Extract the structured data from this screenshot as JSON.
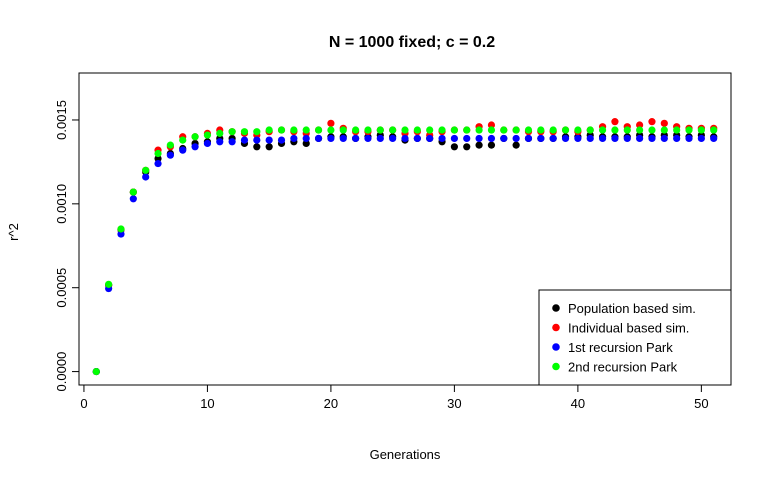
{
  "chart_data": {
    "type": "scatter",
    "title": "N = 1000 fixed; c = 0.2",
    "xlabel": "Generations",
    "ylabel": "r^2",
    "xlim": [
      -0.4,
      52.4
    ],
    "ylim": [
      -8e-05,
      0.00178
    ],
    "xticks": [
      0,
      10,
      20,
      30,
      40,
      50
    ],
    "xtick_labels": [
      "0",
      "10",
      "20",
      "30",
      "40",
      "50"
    ],
    "yticks": [
      0,
      0.0005,
      0.001,
      0.0015
    ],
    "ytick_labels": [
      "0.0000",
      "0.0005",
      "0.0010",
      "0.0015"
    ],
    "grid": false,
    "legend_position": "bottom-right",
    "series": [
      {
        "name": "Population based sim.",
        "color": "#000000",
        "x": [
          1,
          2,
          3,
          4,
          5,
          6,
          7,
          8,
          9,
          10,
          11,
          12,
          13,
          14,
          15,
          16,
          17,
          18,
          19,
          20,
          21,
          22,
          23,
          24,
          25,
          26,
          27,
          28,
          29,
          30,
          31,
          32,
          33,
          34,
          35,
          36,
          37,
          38,
          39,
          40,
          41,
          42,
          43,
          44,
          45,
          46,
          47,
          48,
          49,
          50,
          51
        ],
        "y": [
          0.0,
          0.000515,
          0.000845,
          0.00107,
          0.00119,
          0.00127,
          0.0013,
          0.00133,
          0.00136,
          0.00137,
          0.00139,
          0.00139,
          0.00136,
          0.00134,
          0.00134,
          0.00136,
          0.00137,
          0.00136,
          0.00139,
          0.0014,
          0.0014,
          0.00139,
          0.0014,
          0.00141,
          0.0014,
          0.00138,
          0.00139,
          0.00139,
          0.00137,
          0.00134,
          0.00134,
          0.00135,
          0.00135,
          0.00139,
          0.00135,
          0.00139,
          0.00139,
          0.00139,
          0.0014,
          0.0014,
          0.00141,
          0.0014,
          0.0014,
          0.0014,
          0.00141,
          0.0014,
          0.00141,
          0.00141,
          0.0014,
          0.00141,
          0.0014
        ]
      },
      {
        "name": "Individual based sim.",
        "color": "#ff0000",
        "x": [
          1,
          2,
          3,
          4,
          5,
          6,
          7,
          8,
          9,
          10,
          11,
          12,
          13,
          14,
          15,
          16,
          17,
          18,
          19,
          20,
          21,
          22,
          23,
          24,
          25,
          26,
          27,
          28,
          29,
          30,
          31,
          32,
          33,
          34,
          35,
          36,
          37,
          38,
          39,
          40,
          41,
          42,
          43,
          44,
          45,
          46,
          47,
          48,
          49,
          50,
          51
        ],
        "y": [
          0.0,
          0.000515,
          0.000848,
          0.00107,
          0.0012,
          0.00132,
          0.00134,
          0.0014,
          0.0014,
          0.00142,
          0.00144,
          0.00143,
          0.00142,
          0.00141,
          0.00143,
          0.00144,
          0.00143,
          0.00142,
          0.00144,
          0.00148,
          0.00145,
          0.00143,
          0.00143,
          0.00144,
          0.00144,
          0.00142,
          0.00143,
          0.00141,
          0.00143,
          0.00144,
          0.00144,
          0.00146,
          0.00147,
          0.00144,
          0.00144,
          0.00143,
          0.00143,
          0.00143,
          0.00144,
          0.00143,
          0.00144,
          0.00146,
          0.00149,
          0.00146,
          0.00147,
          0.00149,
          0.00148,
          0.00146,
          0.00145,
          0.00145,
          0.00145
        ]
      },
      {
        "name": "1st recursion Park",
        "color": "#0000ff",
        "x": [
          1,
          2,
          3,
          4,
          5,
          6,
          7,
          8,
          9,
          10,
          11,
          12,
          13,
          14,
          15,
          16,
          17,
          18,
          19,
          20,
          21,
          22,
          23,
          24,
          25,
          26,
          27,
          28,
          29,
          30,
          31,
          32,
          33,
          34,
          35,
          36,
          37,
          38,
          39,
          40,
          41,
          42,
          43,
          44,
          45,
          46,
          47,
          48,
          49,
          50,
          51
        ],
        "y": [
          0.0,
          0.000495,
          0.00082,
          0.00103,
          0.00116,
          0.00124,
          0.00129,
          0.00132,
          0.00134,
          0.00136,
          0.00137,
          0.00137,
          0.00138,
          0.00138,
          0.00138,
          0.00138,
          0.00139,
          0.00139,
          0.00139,
          0.00139,
          0.00139,
          0.00139,
          0.00139,
          0.00139,
          0.00139,
          0.00139,
          0.00139,
          0.00139,
          0.00139,
          0.00139,
          0.00139,
          0.00139,
          0.00139,
          0.00139,
          0.00139,
          0.00139,
          0.00139,
          0.00139,
          0.00139,
          0.00139,
          0.00139,
          0.00139,
          0.00139,
          0.00139,
          0.00139,
          0.00139,
          0.00139,
          0.00139,
          0.00139,
          0.00139,
          0.00139
        ]
      },
      {
        "name": "2nd recursion Park",
        "color": "#00ff00",
        "x": [
          1,
          2,
          3,
          4,
          5,
          6,
          7,
          8,
          9,
          10,
          11,
          12,
          13,
          14,
          15,
          16,
          17,
          18,
          19,
          20,
          21,
          22,
          23,
          24,
          25,
          26,
          27,
          28,
          29,
          30,
          31,
          32,
          33,
          34,
          35,
          36,
          37,
          38,
          39,
          40,
          41,
          42,
          43,
          44,
          45,
          46,
          47,
          48,
          49,
          50,
          51
        ],
        "y": [
          0.0,
          0.00052,
          0.00085,
          0.00107,
          0.0012,
          0.0013,
          0.00135,
          0.00138,
          0.0014,
          0.00141,
          0.00142,
          0.00143,
          0.00143,
          0.00143,
          0.00144,
          0.00144,
          0.00144,
          0.00144,
          0.00144,
          0.00144,
          0.00144,
          0.00144,
          0.00144,
          0.00144,
          0.00144,
          0.00144,
          0.00144,
          0.00144,
          0.00144,
          0.00144,
          0.00144,
          0.00144,
          0.00144,
          0.00144,
          0.00144,
          0.00144,
          0.00144,
          0.00144,
          0.00144,
          0.00144,
          0.00144,
          0.00144,
          0.00144,
          0.00144,
          0.00144,
          0.00144,
          0.00144,
          0.00144,
          0.00144,
          0.00144,
          0.00144
        ]
      }
    ]
  }
}
